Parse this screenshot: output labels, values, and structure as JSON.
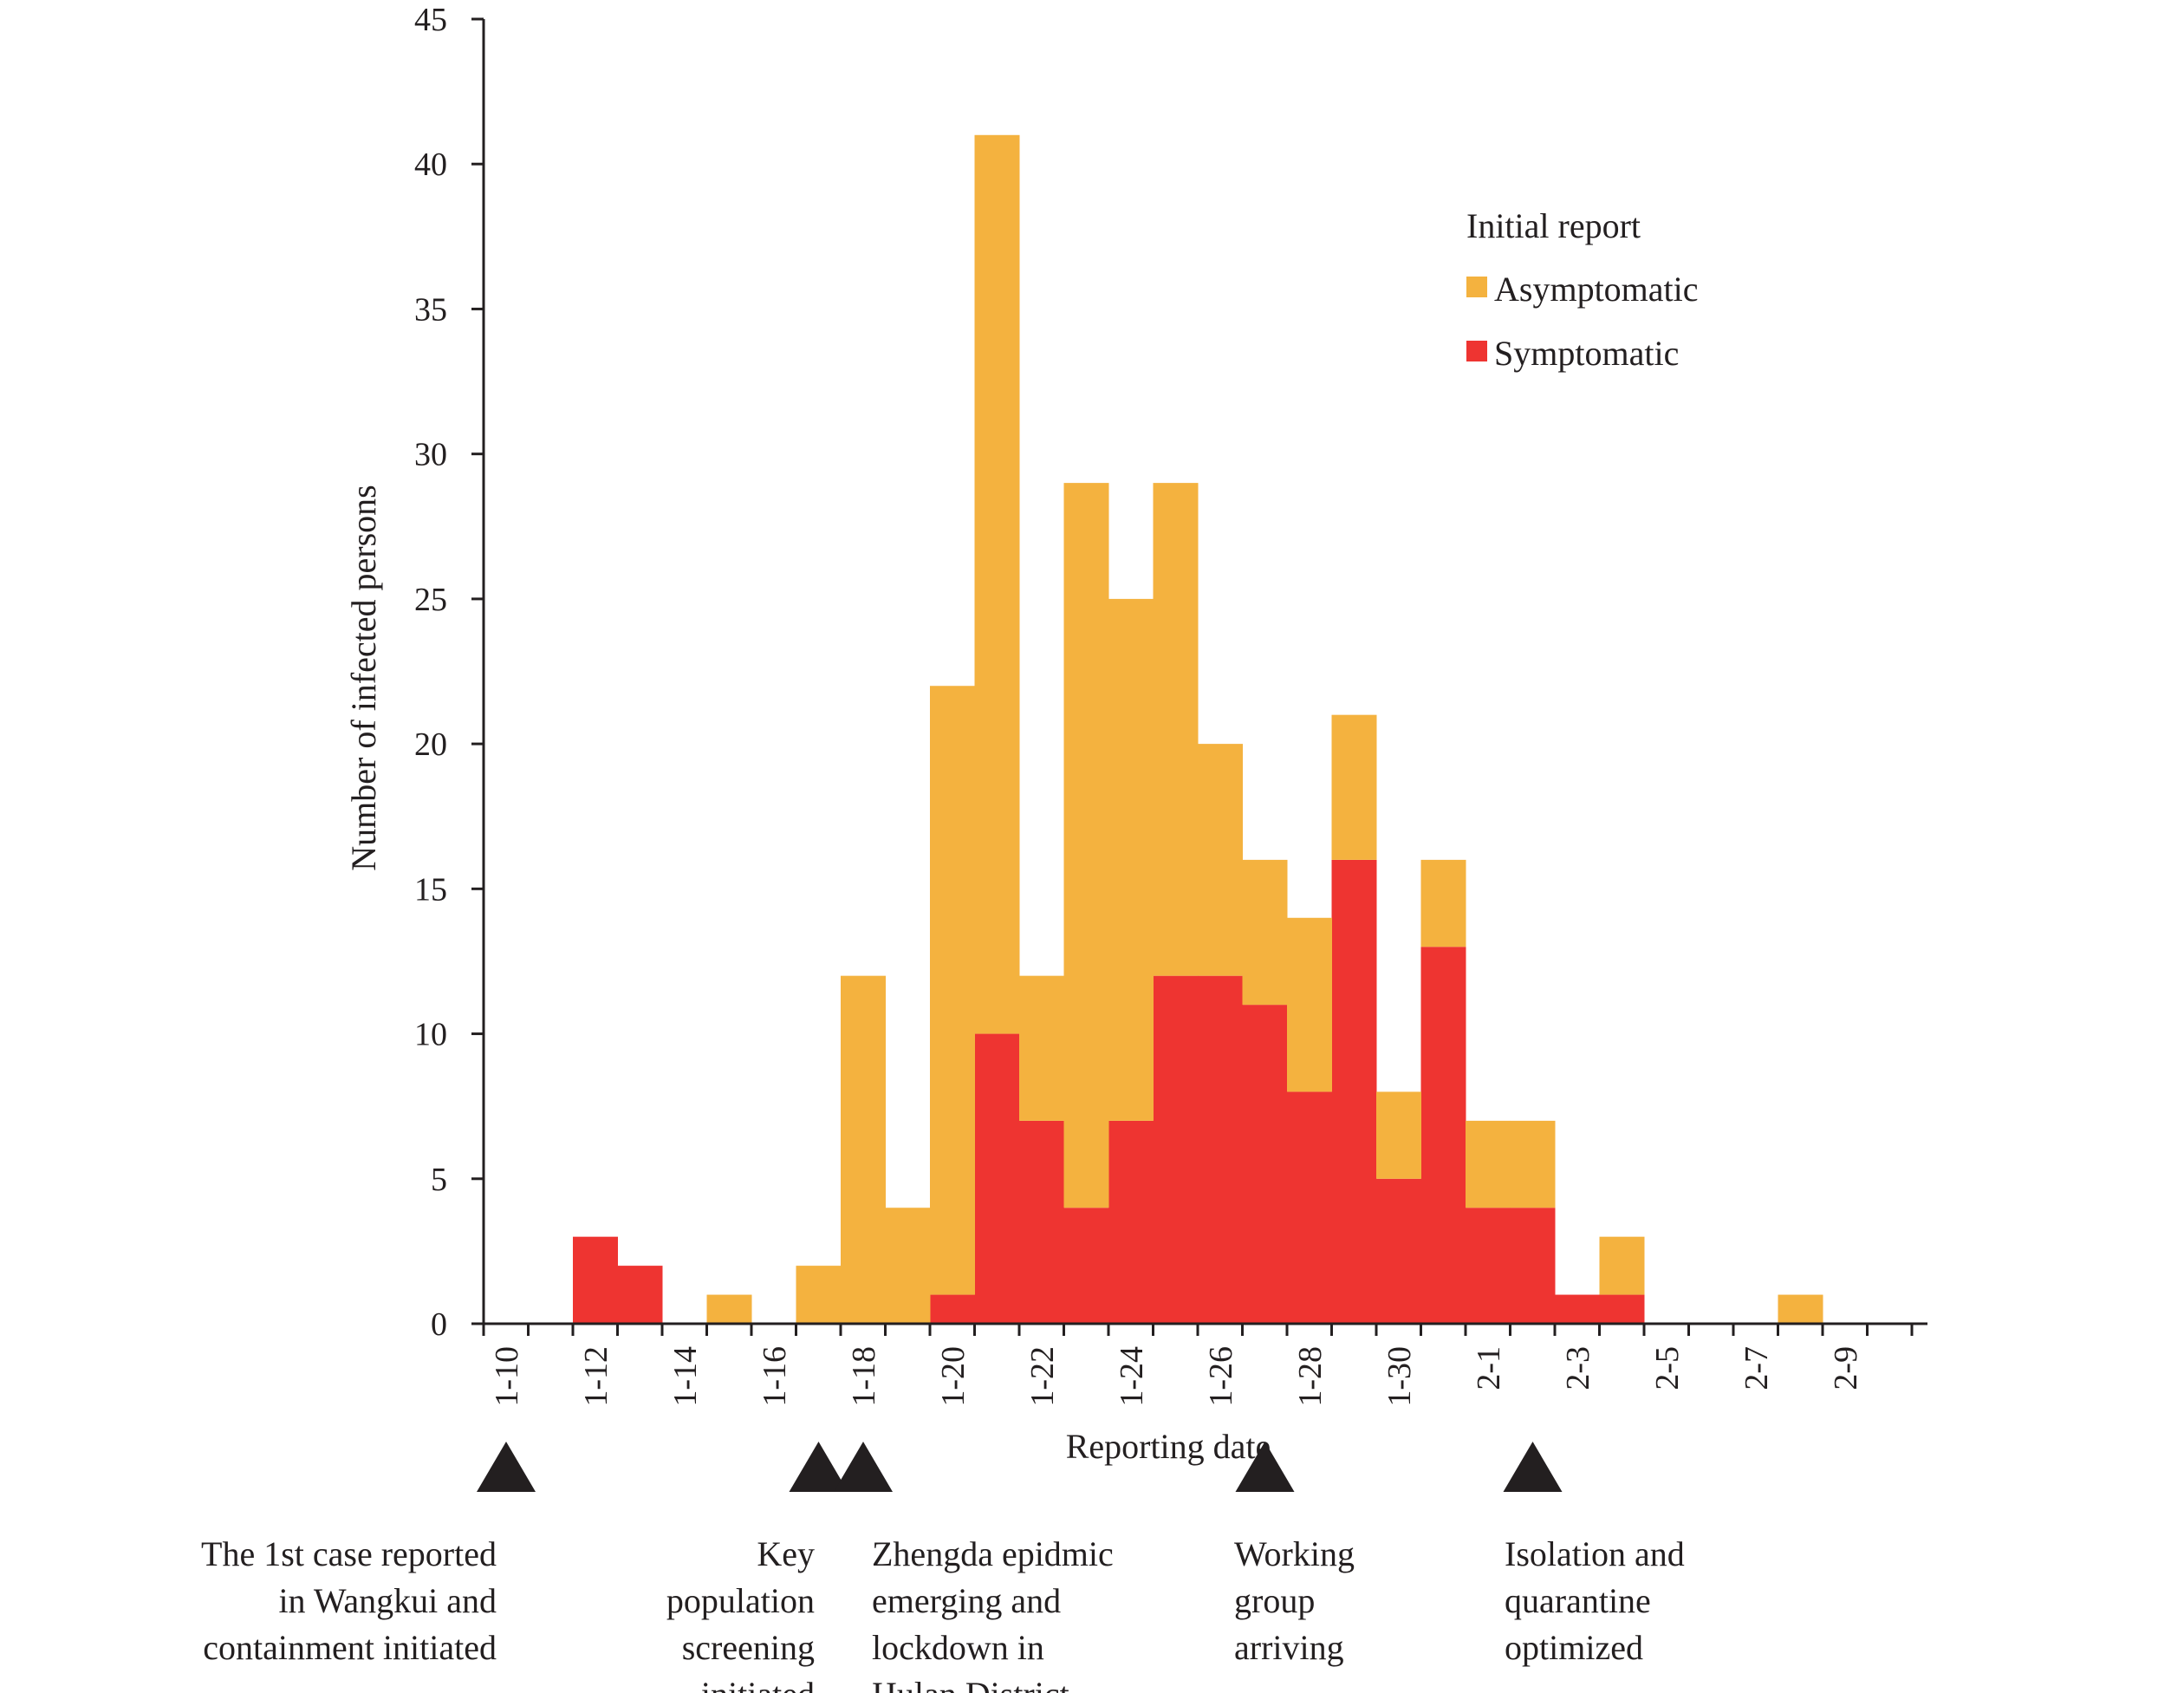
{
  "chart_data": {
    "type": "bar",
    "stacked": true,
    "xlabel": "Reporting date",
    "ylabel": "Number of infected persons",
    "ylim": [
      0,
      45
    ],
    "yticks": [
      0,
      5,
      10,
      15,
      20,
      25,
      30,
      35,
      40,
      45
    ],
    "categories": [
      "1-10",
      "1-11",
      "1-12",
      "1-13",
      "1-14",
      "1-15",
      "1-16",
      "1-17",
      "1-18",
      "1-19",
      "1-20",
      "1-21",
      "1-22",
      "1-23",
      "1-24",
      "1-25",
      "1-26",
      "1-27",
      "1-28",
      "1-29",
      "1-30",
      "1-31",
      "2-1",
      "2-2",
      "2-3",
      "2-4",
      "2-5",
      "2-6",
      "2-7",
      "2-8",
      "2-9",
      "2-10"
    ],
    "tick_labels": [
      "1-10",
      "1-12",
      "1-14",
      "1-16",
      "1-18",
      "1-20",
      "1-22",
      "1-24",
      "1-26",
      "1-28",
      "1-30",
      "2-1",
      "2-3",
      "2-5",
      "2-7",
      "2-9"
    ],
    "legend": {
      "title": "Initial report",
      "placement": "top-right"
    },
    "series": [
      {
        "name": "Symptomatic",
        "color": "#ee3431",
        "values": [
          0,
          0,
          3,
          2,
          0,
          0,
          0,
          0,
          0,
          0,
          1,
          10,
          7,
          4,
          7,
          12,
          12,
          11,
          8,
          16,
          5,
          13,
          4,
          4,
          1,
          1,
          0,
          0,
          0,
          0,
          0,
          0
        ]
      },
      {
        "name": "Asymptomatic",
        "color": "#f4b23f",
        "values": [
          0,
          0,
          0,
          0,
          0,
          1,
          0,
          2,
          12,
          4,
          21,
          31,
          5,
          25,
          18,
          17,
          8,
          5,
          6,
          5,
          3,
          3,
          3,
          3,
          0,
          2,
          0,
          0,
          0,
          1,
          0,
          0
        ]
      }
    ],
    "events": [
      {
        "date": "1-10",
        "lines": [
          "The 1st case reported",
          "in Wangkui and",
          "containment initiated"
        ]
      },
      {
        "date": "1-17",
        "lines": [
          "Key",
          "population",
          "screening",
          "initiated"
        ]
      },
      {
        "date": "1-18",
        "lines": [
          "Zhengda epidmic",
          "emerging and",
          "lockdown in",
          "Hulan District"
        ]
      },
      {
        "date": "1-27",
        "lines": [
          "Working",
          "group",
          "arriving"
        ]
      },
      {
        "date": "2-2",
        "lines": [
          "Isolation and",
          "quarantine",
          "optimized"
        ]
      }
    ]
  }
}
